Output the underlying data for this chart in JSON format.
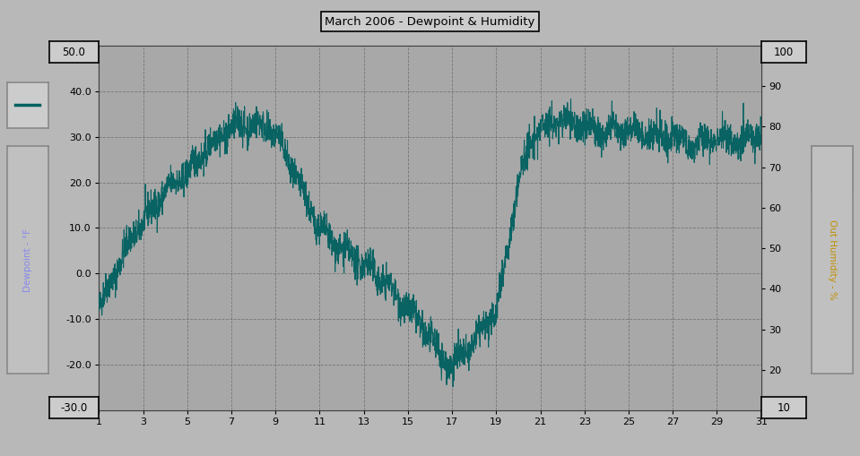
{
  "title": "March 2006 - Dewpoint & Humidity",
  "bg_color": "#b8b8b8",
  "plot_bg_color": "#a8a8a8",
  "grid_color": "#707070",
  "dewpoint_color": "#006060",
  "humidity_color": "#00d8d8",
  "left_label": "Dewpoint - °F",
  "right_label": "Out Humidity - %",
  "left_label_color": "#8888ee",
  "right_label_color": "#c09000",
  "ylim_left": [
    -30,
    50
  ],
  "ylim_right": [
    10,
    100
  ],
  "xlim": [
    1,
    31
  ],
  "yticks_left": [
    -30.0,
    -20.0,
    -10.0,
    0.0,
    10.0,
    20.0,
    30.0,
    40.0,
    50.0
  ],
  "yticks_right": [
    10,
    20,
    30,
    40,
    50,
    60,
    70,
    80,
    90,
    100
  ],
  "xticks": [
    1,
    3,
    5,
    7,
    9,
    11,
    13,
    15,
    17,
    19,
    21,
    23,
    25,
    27,
    29,
    31
  ],
  "n_points": 2976
}
